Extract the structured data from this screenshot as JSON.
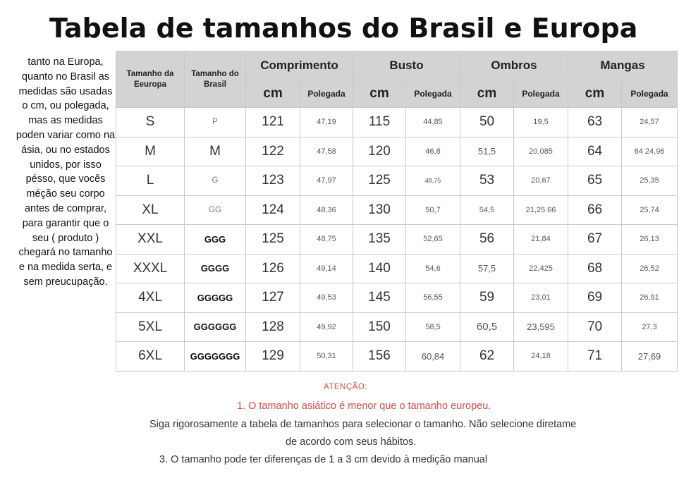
{
  "title": "Tabela de tamanhos do Brasil e Europa",
  "note": "tanto na Europa, quanto no Brasil as medidas são usadas o cm, ou polegada, mas as medidas poden variar como na ásia, ou no estados unidos, por isso pésso, que vocês méção seu corpo antes de comprar, para garantir que o seu ( produto ) chegará no tamanho e na medida serta, e sem preucupação.",
  "table": {
    "header": {
      "eu": "Tamanho da Eeuropa",
      "br": "Tamanho do Brasil",
      "groups": [
        "Comprimento",
        "Busto",
        "Ombros",
        "Mangas"
      ],
      "cm": "cm",
      "pol": "Polegada"
    },
    "rows": [
      {
        "eu": "S",
        "br": "P",
        "c_cm": "121",
        "c_in": "47,19",
        "b_cm": "115",
        "b_in": "44,85",
        "o_cm": "50",
        "o_in": "19,5",
        "m_cm": "63",
        "m_in": "24,57"
      },
      {
        "eu": "M",
        "br": "M",
        "c_cm": "122",
        "c_in": "47,58",
        "b_cm": "120",
        "b_in": "46,8",
        "o_cm": "51,5",
        "o_in": "20,085",
        "m_cm": "64",
        "m_in": "64 24,96"
      },
      {
        "eu": "L",
        "br": "G",
        "c_cm": "123",
        "c_in": "47,97",
        "b_cm": "125",
        "b_in": "48,75",
        "o_cm": "53",
        "o_in": "20,67",
        "m_cm": "65",
        "m_in": "25,35"
      },
      {
        "eu": "XL",
        "br": "GG",
        "c_cm": "124",
        "c_in": "48,36",
        "b_cm": "130",
        "b_in": "50,7",
        "o_cm": "54,5",
        "o_in": "21,25 66",
        "m_cm": "66",
        "m_in": "25,74"
      },
      {
        "eu": "XXL",
        "br": "GGG",
        "c_cm": "125",
        "c_in": "48,75",
        "b_cm": "135",
        "b_in": "52,65",
        "o_cm": "56",
        "o_in": "21,84",
        "m_cm": "67",
        "m_in": "26,13"
      },
      {
        "eu": "XXXL",
        "br": "GGGG",
        "c_cm": "126",
        "c_in": "49,14",
        "b_cm": "140",
        "b_in": "54,6",
        "o_cm": "57,5",
        "o_in": "22,425",
        "m_cm": "68",
        "m_in": "26,52"
      },
      {
        "eu": "4XL",
        "br": "GGGGG",
        "c_cm": "127",
        "c_in": "49,53",
        "b_cm": "145",
        "b_in": "56,55",
        "o_cm": "59",
        "o_in": "23,01",
        "m_cm": "69",
        "m_in": "26,91"
      },
      {
        "eu": "5XL",
        "br": "GGGGGG",
        "c_cm": "128",
        "c_in": "49,92",
        "b_cm": "150",
        "b_in": "58,5",
        "o_cm": "60,5",
        "o_in": "23,595",
        "m_cm": "70",
        "m_in": "27,3"
      },
      {
        "eu": "6XL",
        "br": "GGGGGGG",
        "c_cm": "129",
        "c_in": "50,31",
        "b_cm": "156",
        "b_in": "60,84",
        "o_cm": "62",
        "o_in": "24,18",
        "m_cm": "71",
        "m_in": "27,69"
      }
    ]
  },
  "attention": {
    "heading": "ATENÇÃO:",
    "line1": "1. O tamanho asiático é menor que o tamanho europeu.",
    "line2": "Siga rigorosamente a tabela de tamanhos para selecionar o tamanho. Não selecione diretame",
    "line3": "de acordo com seus hábitos.",
    "line4": "3. O tamanho pode ter diferenças de 1 a 3 cm devido à medição manual"
  },
  "colors": {
    "header_bg": "#d3d3d3",
    "attention_red": "#d84a4a"
  }
}
